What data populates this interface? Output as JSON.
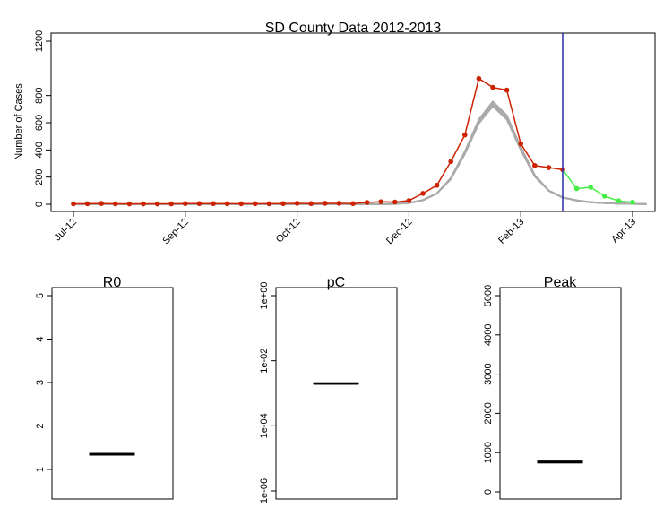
{
  "chart_data": [
    {
      "type": "line",
      "title": "SD County Data 2012-2013",
      "ylabel": "Number of Cases",
      "xlabel": "",
      "ylim": [
        0,
        1200
      ],
      "yticks": [
        0,
        200,
        400,
        600,
        800,
        1200
      ],
      "x_tick_labels": [
        {
          "label": "Jul-12",
          "week": 0
        },
        {
          "label": "Sep-12",
          "week": 8
        },
        {
          "label": "Oct-12",
          "week": 16
        },
        {
          "label": "Dec-12",
          "week": 24
        },
        {
          "label": "Feb-13",
          "week": 32
        },
        {
          "label": "Apr-13",
          "week": 40
        }
      ],
      "xlim": [
        -1,
        41
      ],
      "vline": {
        "week": 35,
        "color": "#2a2aa8"
      },
      "grid": false,
      "series": [
        {
          "role": "observed",
          "color": "#cc2200",
          "x": [
            0,
            1,
            2,
            3,
            4,
            5,
            6,
            7,
            8,
            9,
            10,
            11,
            12,
            13,
            14,
            15,
            16,
            17,
            18,
            19,
            20,
            21,
            22,
            23,
            24,
            25,
            26,
            27,
            28,
            29,
            30,
            31,
            32,
            33,
            34,
            35
          ],
          "values": [
            3,
            4,
            6,
            3,
            3,
            3,
            3,
            3,
            5,
            5,
            5,
            4,
            4,
            4,
            4,
            5,
            7,
            5,
            7,
            7,
            5,
            13,
            19,
            16,
            27,
            80,
            140,
            315,
            510,
            925,
            860,
            840,
            445,
            285,
            270,
            255
          ]
        },
        {
          "role": "held-out",
          "color": "#44ee44",
          "x": [
            35,
            36,
            37,
            38,
            39,
            40
          ],
          "values": [
            255,
            115,
            125,
            60,
            25,
            15
          ]
        },
        {
          "role": "model-fit",
          "color": "#aaaaaa",
          "x": [
            0,
            1,
            2,
            3,
            4,
            5,
            6,
            7,
            8,
            9,
            10,
            11,
            12,
            13,
            14,
            15,
            16,
            17,
            18,
            19,
            20,
            21,
            22,
            23,
            24,
            25,
            26,
            27,
            28,
            29,
            30,
            31,
            32,
            33,
            34,
            35,
            36,
            37,
            38,
            39,
            40,
            41
          ],
          "values": [
            0,
            0,
            0,
            0,
            0,
            0,
            0,
            0,
            0,
            0,
            0,
            0,
            0,
            0,
            0,
            0,
            0,
            0,
            0,
            0,
            0,
            0,
            1,
            3,
            10,
            30,
            80,
            190,
            380,
            610,
            740,
            640,
            410,
            210,
            100,
            50,
            28,
            15,
            9,
            5,
            3,
            2
          ]
        }
      ]
    },
    {
      "type": "boxplot",
      "title": "R0",
      "ylim": [
        0.3,
        5.2
      ],
      "yticks": [
        1,
        2,
        3,
        4,
        5
      ],
      "y_scale": "linear",
      "median": 1.35,
      "q1": 1.33,
      "q3": 1.37
    },
    {
      "type": "boxplot",
      "title": "pC",
      "y_scale": "log10",
      "ylim": [
        1e-06,
        1
      ],
      "yticks": [
        "1e-06",
        "1e-04",
        "1e-02",
        "1e+00"
      ],
      "median": 0.002,
      "q1": 0.0019,
      "q3": 0.0021
    },
    {
      "type": "boxplot",
      "title": "Peak",
      "y_scale": "linear",
      "ylim": [
        -100,
        5200
      ],
      "yticks": [
        0,
        1000,
        2000,
        3000,
        4000,
        5000
      ],
      "median": 760,
      "q1": 735,
      "q3": 785
    }
  ]
}
